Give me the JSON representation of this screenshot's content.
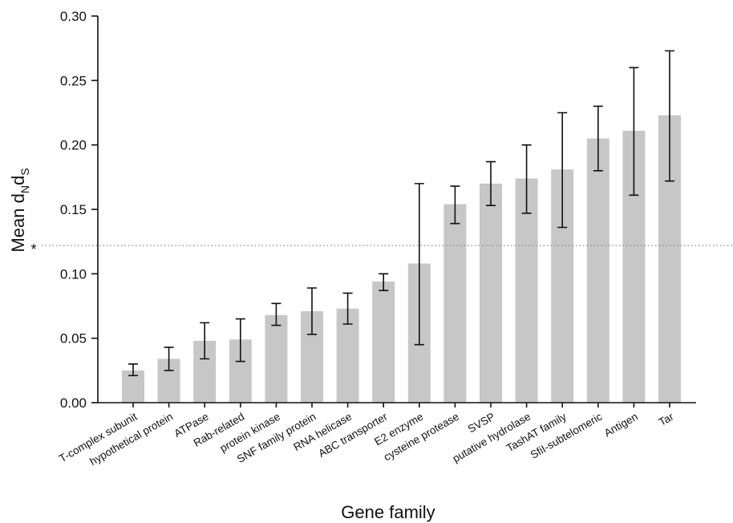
{
  "chart_data": {
    "type": "bar",
    "xlabel": "Gene family",
    "ylabel_main": "Mean d",
    "ylabel_sub1": "N",
    "ylabel_mid": "d",
    "ylabel_sub2": "S",
    "ylim": [
      0,
      0.3
    ],
    "yticks": [
      "0.00",
      "0.05",
      "0.10",
      "0.15",
      "0.20",
      "0.25",
      "0.30"
    ],
    "ytick_values": [
      0,
      0.05,
      0.1,
      0.15,
      0.2,
      0.25,
      0.3
    ],
    "reference_line": {
      "value": 0.122,
      "label": "*",
      "style": "dotted"
    },
    "categories": [
      "T-complex subunit",
      "hypothetical protein",
      "ATPase",
      "Rab-related",
      "protein kinase",
      "SNF family protein",
      "RNA helicase",
      "ABC transporter",
      "E2 enzyme",
      "cysteine protease",
      "SVSP",
      "putative hydrolase",
      "TashAT family",
      "SfiI-subtelomeric",
      "Antigen",
      "Tar"
    ],
    "values": [
      0.025,
      0.034,
      0.048,
      0.049,
      0.068,
      0.071,
      0.073,
      0.094,
      0.108,
      0.154,
      0.17,
      0.174,
      0.181,
      0.205,
      0.211,
      0.223
    ],
    "error_low": [
      0.021,
      0.025,
      0.034,
      0.032,
      0.06,
      0.053,
      0.061,
      0.087,
      0.045,
      0.139,
      0.153,
      0.147,
      0.136,
      0.18,
      0.161,
      0.172
    ],
    "error_high": [
      0.03,
      0.043,
      0.062,
      0.065,
      0.077,
      0.089,
      0.085,
      0.1,
      0.17,
      0.168,
      0.187,
      0.2,
      0.225,
      0.23,
      0.26,
      0.273
    ],
    "grid": false,
    "colors": {
      "bar": "#c7c7c7",
      "error": "#111111",
      "reference": "#888888"
    }
  }
}
